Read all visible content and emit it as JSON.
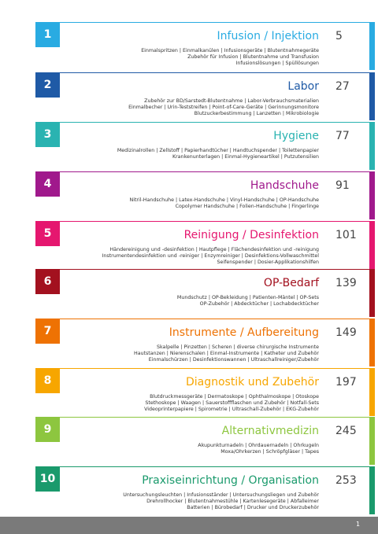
{
  "entries": [
    {
      "number": "1",
      "title": "Infusion / Injektion",
      "page": "5",
      "color": "#29abe2",
      "lines": [
        "Einmalspritzen | Einmalkanülen | Infusionsgeräte | Blutentnahmegeräte",
        "Zubehör für Infusion | Blutentnahme und Transfusion",
        "Infusionslösungen | Spüllösungen"
      ]
    },
    {
      "number": "2",
      "title": "Labor",
      "page": "27",
      "color": "#1f5aa6",
      "lines": [
        "Zubehör zur BD/Sarstedt-Blutentnahme | Labor-Verbrauchsmaterialien",
        "Einmalbecher | Urin-Teststreifen | Point-of-Care-Geräte | Gerinnungsmonitore",
        "Blutzuckerbestimmung | Lanzetten | Mikrobiologie"
      ]
    },
    {
      "number": "3",
      "title": "Hygiene",
      "page": "77",
      "color": "#2ab3b1",
      "lines": [
        "Medizinalrollen | Zellstoff | Papierhandtücher | Handtuchspender | Toilettenpapier",
        "Krankenunterlagen | Einmal-Hygieneartikel | Putzutensilien"
      ]
    },
    {
      "number": "4",
      "title": "Handschuhe",
      "page": "91",
      "color": "#a0198c",
      "lines": [
        "Nitril-Handschuhe | Latex-Handschuhe | Vinyl-Handschuhe | OP-Handschuhe",
        "Copolymer Handschuhe | Folien-Handschuhe | Fingerlinge"
      ]
    },
    {
      "number": "5",
      "title": "Reinigung / Desinfektion",
      "page": "101",
      "color": "#e5176f",
      "lines": [
        "Händereinigung und -desinfektion | Hautpflege | Flächendesinfektion und -reinigung",
        "Instrumentendesinfektion und -reiniger | Enzymreiniger | Desinfektions-Vollwaschmittel",
        "Seifenspender | Dosier-Applikationshilfen"
      ]
    },
    {
      "number": "6",
      "title": "OP-Bedarf",
      "page": "139",
      "color": "#a3111f",
      "lines": [
        "Mundschutz | OP-Bekleidung | Patienten-Mäntel | OP-Sets",
        "OP-Zubehör | Abdecktücher | Lochabdecktücher"
      ]
    },
    {
      "number": "7",
      "title": "Instrumente / Aufbereitung",
      "page": "149",
      "color": "#ee7203",
      "lines": [
        "Skalpelle | Pinzetten | Scheren | diverse chirurgische Instrumente",
        "Hautstanzen | Nierenschalen | Einmal-Instrumente | Katheter und Zubehör",
        "Einmalschürzen | Desinfektionswannen | Ultraschallreiniger/Zubehör"
      ]
    },
    {
      "number": "8",
      "title": "Diagnostik und Zubehör",
      "page": "197",
      "color": "#f7a600",
      "lines": [
        "Blutdruckmessgeräte | Dermatoskope | Ophthalmoskope | Otoskope",
        "Stethoskope | Waagen | Sauerstoffflaschen und Zubehör | Notfall-Sets",
        "Videoprinterpapiere | Spirometrie | Ultraschall-Zubehör | EKG-Zubehör"
      ]
    },
    {
      "number": "9",
      "title": "Alternativmedizin",
      "page": "245",
      "color": "#8dc63f",
      "lines": [
        "Akupunkturnadeln | Ohrdauernadeln | Ohrkugeln",
        "Moxa/Ohrkerzen | Schröpfgläser | Tapes"
      ]
    },
    {
      "number": "10",
      "title": "Praxiseinrichtung / Organisation",
      "page": "253",
      "color": "#1a9a6c",
      "lines": [
        "Untersuchungsleuchten | Infusionsständer | Untersuchungsliegen und Zubehör",
        "Drehrollhocker | Blutentnahmestühle | Kartenlesegeräte | Abfalleimer",
        "Batterien | Bürobedarf | Drucker und Druckerzubehör"
      ]
    }
  ],
  "footer": {
    "page_number": "1"
  }
}
